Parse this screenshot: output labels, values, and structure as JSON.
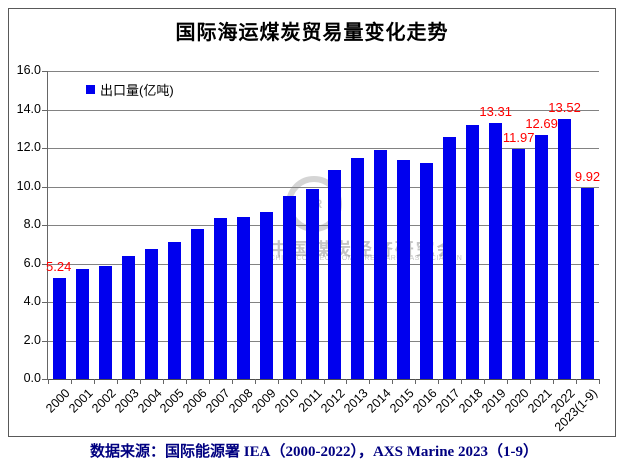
{
  "chart_data": {
    "type": "bar",
    "title": "国际海运煤炭贸易量变化走势",
    "xlabel": "",
    "ylabel": "",
    "ylim": [
      0,
      16
    ],
    "y_tick_interval": 2,
    "y_tick_labels": [
      "16.0",
      "14.0",
      "12.0",
      "10.0",
      "8.0",
      "6.0",
      "4.0",
      "2.0",
      "0.0"
    ],
    "grid": true,
    "legend": {
      "label": "出口量(亿吨)",
      "position": "top-left-inside",
      "swatch_color": "#0000ee"
    },
    "categories": [
      "2000",
      "2001",
      "2002",
      "2003",
      "2004",
      "2005",
      "2006",
      "2007",
      "2008",
      "2009",
      "2010",
      "2011",
      "2012",
      "2013",
      "2014",
      "2015",
      "2016",
      "2017",
      "2018",
      "2019",
      "2020",
      "2021",
      "2022",
      "2023(1-9)"
    ],
    "values": [
      5.24,
      5.7,
      5.85,
      6.4,
      6.75,
      7.1,
      7.8,
      8.35,
      8.4,
      8.7,
      9.5,
      9.85,
      10.85,
      11.5,
      11.9,
      11.4,
      11.2,
      12.6,
      13.2,
      13.31,
      11.97,
      12.69,
      13.52,
      9.92
    ],
    "data_labels": [
      {
        "index": 0,
        "text": "5.24",
        "align": "left"
      },
      {
        "index": 19,
        "text": "13.31"
      },
      {
        "index": 20,
        "text": "11.97"
      },
      {
        "index": 21,
        "text": "12.69"
      },
      {
        "index": 22,
        "text": "13.52"
      },
      {
        "index": 23,
        "text": "9.92"
      }
    ],
    "bar_color": "#0000ee",
    "data_label_color": "#ff0000",
    "gridline_color": "#828282"
  },
  "watermark": {
    "ring_text": "ER",
    "cn_text": "中国煤炭经济研究会",
    "en_text": "CHINA COAL ECONOMIC RESEARCH ASSOCIATION"
  },
  "footer": {
    "text": "数据来源：国际能源署 IEA（2000-2022），AXS Marine 2023（1-9）",
    "color": "#000080"
  }
}
